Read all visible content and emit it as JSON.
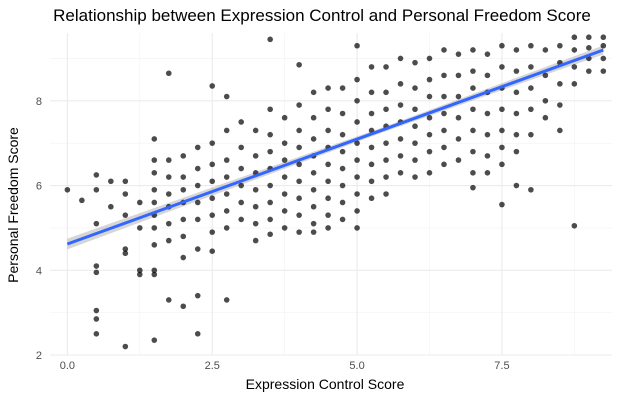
{
  "chart_data": {
    "type": "scatter",
    "title": "Relationship between Expression Control and Personal Freedom Score",
    "xlabel": "Expression Control Score",
    "ylabel": "Personal Freedom Score",
    "xlim": [
      -0.3,
      9.4
    ],
    "ylim": [
      2.0,
      9.6
    ],
    "x_ticks": [
      0.0,
      2.5,
      5.0,
      7.5
    ],
    "x_tick_labels": [
      "0.0",
      "2.5",
      "5.0",
      "7.5"
    ],
    "y_ticks": [
      2,
      4,
      6,
      8
    ],
    "y_tick_labels": [
      "2",
      "4",
      "6",
      "8"
    ],
    "grid": true,
    "legend": "none",
    "point_color": "#000000",
    "point_opacity": 0.7,
    "fit_line": {
      "type": "linear",
      "color": "#3366ff",
      "band_color": "#999999",
      "intercept": 4.62,
      "slope": 0.495
    },
    "points": [
      {
        "x": 0.0,
        "y": 5.9
      },
      {
        "x": 0.25,
        "y": 5.65
      },
      {
        "x": 0.5,
        "y": 6.25
      },
      {
        "x": 0.5,
        "y": 5.9
      },
      {
        "x": 0.5,
        "y": 5.1
      },
      {
        "x": 0.5,
        "y": 4.1
      },
      {
        "x": 0.5,
        "y": 3.95
      },
      {
        "x": 0.5,
        "y": 3.05
      },
      {
        "x": 0.5,
        "y": 2.85
      },
      {
        "x": 0.5,
        "y": 2.5
      },
      {
        "x": 0.75,
        "y": 6.1
      },
      {
        "x": 0.75,
        "y": 5.5
      },
      {
        "x": 1.0,
        "y": 6.1
      },
      {
        "x": 1.0,
        "y": 5.8
      },
      {
        "x": 1.0,
        "y": 5.3
      },
      {
        "x": 1.0,
        "y": 4.5
      },
      {
        "x": 1.0,
        "y": 4.4
      },
      {
        "x": 1.0,
        "y": 2.2
      },
      {
        "x": 1.25,
        "y": 5.6
      },
      {
        "x": 1.25,
        "y": 5.0
      },
      {
        "x": 1.25,
        "y": 4.0
      },
      {
        "x": 1.25,
        "y": 3.9
      },
      {
        "x": 1.5,
        "y": 7.1
      },
      {
        "x": 1.5,
        "y": 6.6
      },
      {
        "x": 1.5,
        "y": 6.3
      },
      {
        "x": 1.5,
        "y": 5.9
      },
      {
        "x": 1.5,
        "y": 5.6
      },
      {
        "x": 1.5,
        "y": 5.3
      },
      {
        "x": 1.5,
        "y": 5.0
      },
      {
        "x": 1.5,
        "y": 4.6
      },
      {
        "x": 1.5,
        "y": 4.0
      },
      {
        "x": 1.5,
        "y": 3.9
      },
      {
        "x": 1.5,
        "y": 2.35
      },
      {
        "x": 1.75,
        "y": 8.65
      },
      {
        "x": 1.75,
        "y": 6.6
      },
      {
        "x": 1.75,
        "y": 6.2
      },
      {
        "x": 1.75,
        "y": 5.8
      },
      {
        "x": 1.75,
        "y": 5.5
      },
      {
        "x": 1.75,
        "y": 5.1
      },
      {
        "x": 1.75,
        "y": 4.7
      },
      {
        "x": 1.75,
        "y": 3.3
      },
      {
        "x": 2.0,
        "y": 6.7
      },
      {
        "x": 2.0,
        "y": 6.2
      },
      {
        "x": 2.0,
        "y": 5.9
      },
      {
        "x": 2.0,
        "y": 5.6
      },
      {
        "x": 2.0,
        "y": 5.2
      },
      {
        "x": 2.0,
        "y": 4.8
      },
      {
        "x": 2.0,
        "y": 4.3
      },
      {
        "x": 2.0,
        "y": 3.15
      },
      {
        "x": 2.25,
        "y": 6.9
      },
      {
        "x": 2.25,
        "y": 6.4
      },
      {
        "x": 2.25,
        "y": 6.0
      },
      {
        "x": 2.25,
        "y": 5.6
      },
      {
        "x": 2.25,
        "y": 5.2
      },
      {
        "x": 2.25,
        "y": 4.5
      },
      {
        "x": 2.25,
        "y": 3.4
      },
      {
        "x": 2.25,
        "y": 2.5
      },
      {
        "x": 2.5,
        "y": 8.35
      },
      {
        "x": 2.5,
        "y": 7.0
      },
      {
        "x": 2.5,
        "y": 6.5
      },
      {
        "x": 2.5,
        "y": 6.1
      },
      {
        "x": 2.5,
        "y": 5.7
      },
      {
        "x": 2.5,
        "y": 5.3
      },
      {
        "x": 2.5,
        "y": 4.9
      },
      {
        "x": 2.5,
        "y": 4.45
      },
      {
        "x": 2.75,
        "y": 8.1
      },
      {
        "x": 2.75,
        "y": 7.3
      },
      {
        "x": 2.75,
        "y": 6.6
      },
      {
        "x": 2.75,
        "y": 6.2
      },
      {
        "x": 2.75,
        "y": 5.8
      },
      {
        "x": 2.75,
        "y": 5.4
      },
      {
        "x": 2.75,
        "y": 5.0
      },
      {
        "x": 2.75,
        "y": 3.3
      },
      {
        "x": 3.0,
        "y": 7.5
      },
      {
        "x": 3.0,
        "y": 6.9
      },
      {
        "x": 3.0,
        "y": 6.4
      },
      {
        "x": 3.0,
        "y": 6.0
      },
      {
        "x": 3.0,
        "y": 5.6
      },
      {
        "x": 3.0,
        "y": 5.2
      },
      {
        "x": 3.25,
        "y": 7.3
      },
      {
        "x": 3.25,
        "y": 6.7
      },
      {
        "x": 3.25,
        "y": 6.3
      },
      {
        "x": 3.25,
        "y": 5.9
      },
      {
        "x": 3.25,
        "y": 5.5
      },
      {
        "x": 3.25,
        "y": 5.1
      },
      {
        "x": 3.25,
        "y": 4.7
      },
      {
        "x": 3.5,
        "y": 9.45
      },
      {
        "x": 3.5,
        "y": 7.8
      },
      {
        "x": 3.5,
        "y": 7.2
      },
      {
        "x": 3.5,
        "y": 6.8
      },
      {
        "x": 3.5,
        "y": 6.4
      },
      {
        "x": 3.5,
        "y": 6.0
      },
      {
        "x": 3.5,
        "y": 5.6
      },
      {
        "x": 3.5,
        "y": 5.2
      },
      {
        "x": 3.5,
        "y": 4.85
      },
      {
        "x": 3.75,
        "y": 7.6
      },
      {
        "x": 3.75,
        "y": 7.0
      },
      {
        "x": 3.75,
        "y": 6.6
      },
      {
        "x": 3.75,
        "y": 6.2
      },
      {
        "x": 3.75,
        "y": 5.8
      },
      {
        "x": 3.75,
        "y": 5.4
      },
      {
        "x": 3.75,
        "y": 5.0
      },
      {
        "x": 4.0,
        "y": 8.85
      },
      {
        "x": 4.0,
        "y": 7.9
      },
      {
        "x": 4.0,
        "y": 7.3
      },
      {
        "x": 4.0,
        "y": 6.9
      },
      {
        "x": 4.0,
        "y": 6.5
      },
      {
        "x": 4.0,
        "y": 6.1
      },
      {
        "x": 4.0,
        "y": 5.7
      },
      {
        "x": 4.0,
        "y": 5.3
      },
      {
        "x": 4.0,
        "y": 4.9
      },
      {
        "x": 4.25,
        "y": 8.2
      },
      {
        "x": 4.25,
        "y": 7.6
      },
      {
        "x": 4.25,
        "y": 7.1
      },
      {
        "x": 4.25,
        "y": 6.7
      },
      {
        "x": 4.25,
        "y": 6.3
      },
      {
        "x": 4.25,
        "y": 5.9
      },
      {
        "x": 4.25,
        "y": 5.5
      },
      {
        "x": 4.25,
        "y": 5.1
      },
      {
        "x": 4.25,
        "y": 4.9
      },
      {
        "x": 4.5,
        "y": 8.3
      },
      {
        "x": 4.5,
        "y": 7.8
      },
      {
        "x": 4.5,
        "y": 7.3
      },
      {
        "x": 4.5,
        "y": 6.9
      },
      {
        "x": 4.5,
        "y": 6.5
      },
      {
        "x": 4.5,
        "y": 6.1
      },
      {
        "x": 4.5,
        "y": 5.7
      },
      {
        "x": 4.5,
        "y": 5.3
      },
      {
        "x": 4.5,
        "y": 5.0
      },
      {
        "x": 4.75,
        "y": 8.3
      },
      {
        "x": 4.75,
        "y": 7.7
      },
      {
        "x": 4.75,
        "y": 7.2
      },
      {
        "x": 4.75,
        "y": 6.8
      },
      {
        "x": 4.75,
        "y": 6.4
      },
      {
        "x": 4.75,
        "y": 6.0
      },
      {
        "x": 4.75,
        "y": 5.6
      },
      {
        "x": 4.75,
        "y": 5.2
      },
      {
        "x": 5.0,
        "y": 9.3
      },
      {
        "x": 5.0,
        "y": 8.5
      },
      {
        "x": 5.0,
        "y": 8.0
      },
      {
        "x": 5.0,
        "y": 7.5
      },
      {
        "x": 5.0,
        "y": 7.0
      },
      {
        "x": 5.0,
        "y": 6.6
      },
      {
        "x": 5.0,
        "y": 6.2
      },
      {
        "x": 5.0,
        "y": 5.8
      },
      {
        "x": 5.0,
        "y": 5.4
      },
      {
        "x": 5.0,
        "y": 5.0
      },
      {
        "x": 5.25,
        "y": 8.8
      },
      {
        "x": 5.25,
        "y": 8.2
      },
      {
        "x": 5.25,
        "y": 7.7
      },
      {
        "x": 5.25,
        "y": 7.3
      },
      {
        "x": 5.25,
        "y": 6.9
      },
      {
        "x": 5.25,
        "y": 6.5
      },
      {
        "x": 5.25,
        "y": 6.1
      },
      {
        "x": 5.25,
        "y": 5.7
      },
      {
        "x": 5.5,
        "y": 8.8
      },
      {
        "x": 5.5,
        "y": 8.2
      },
      {
        "x": 5.5,
        "y": 7.8
      },
      {
        "x": 5.5,
        "y": 7.4
      },
      {
        "x": 5.5,
        "y": 7.0
      },
      {
        "x": 5.5,
        "y": 6.6
      },
      {
        "x": 5.5,
        "y": 6.2
      },
      {
        "x": 5.5,
        "y": 5.8
      },
      {
        "x": 5.75,
        "y": 9.0
      },
      {
        "x": 5.75,
        "y": 8.4
      },
      {
        "x": 5.75,
        "y": 7.9
      },
      {
        "x": 5.75,
        "y": 7.5
      },
      {
        "x": 5.75,
        "y": 7.1
      },
      {
        "x": 5.75,
        "y": 6.7
      },
      {
        "x": 5.75,
        "y": 6.3
      },
      {
        "x": 6.0,
        "y": 8.9
      },
      {
        "x": 6.0,
        "y": 8.3
      },
      {
        "x": 6.0,
        "y": 7.8
      },
      {
        "x": 6.0,
        "y": 7.4
      },
      {
        "x": 6.0,
        "y": 7.0
      },
      {
        "x": 6.0,
        "y": 6.6
      },
      {
        "x": 6.0,
        "y": 6.2
      },
      {
        "x": 6.25,
        "y": 9.0
      },
      {
        "x": 6.25,
        "y": 8.5
      },
      {
        "x": 6.25,
        "y": 8.1
      },
      {
        "x": 6.25,
        "y": 7.6
      },
      {
        "x": 6.25,
        "y": 7.2
      },
      {
        "x": 6.25,
        "y": 6.8
      },
      {
        "x": 6.25,
        "y": 6.3
      },
      {
        "x": 6.5,
        "y": 9.2
      },
      {
        "x": 6.5,
        "y": 8.6
      },
      {
        "x": 6.5,
        "y": 8.1
      },
      {
        "x": 6.5,
        "y": 7.7
      },
      {
        "x": 6.5,
        "y": 7.3
      },
      {
        "x": 6.5,
        "y": 6.9
      },
      {
        "x": 6.5,
        "y": 6.5
      },
      {
        "x": 6.75,
        "y": 9.1
      },
      {
        "x": 6.75,
        "y": 8.6
      },
      {
        "x": 6.75,
        "y": 8.1
      },
      {
        "x": 6.75,
        "y": 7.6
      },
      {
        "x": 6.75,
        "y": 7.1
      },
      {
        "x": 6.75,
        "y": 6.6
      },
      {
        "x": 7.0,
        "y": 9.2
      },
      {
        "x": 7.0,
        "y": 8.7
      },
      {
        "x": 7.0,
        "y": 8.3
      },
      {
        "x": 7.0,
        "y": 7.8
      },
      {
        "x": 7.0,
        "y": 7.3
      },
      {
        "x": 7.0,
        "y": 6.8
      },
      {
        "x": 7.0,
        "y": 6.3
      },
      {
        "x": 7.0,
        "y": 5.95
      },
      {
        "x": 7.25,
        "y": 9.1
      },
      {
        "x": 7.25,
        "y": 8.6
      },
      {
        "x": 7.25,
        "y": 8.2
      },
      {
        "x": 7.25,
        "y": 7.7
      },
      {
        "x": 7.25,
        "y": 7.2
      },
      {
        "x": 7.25,
        "y": 6.7
      },
      {
        "x": 7.25,
        "y": 6.3
      },
      {
        "x": 7.5,
        "y": 9.3
      },
      {
        "x": 7.5,
        "y": 8.8
      },
      {
        "x": 7.5,
        "y": 8.3
      },
      {
        "x": 7.5,
        "y": 7.8
      },
      {
        "x": 7.5,
        "y": 7.3
      },
      {
        "x": 7.5,
        "y": 6.9
      },
      {
        "x": 7.5,
        "y": 6.5
      },
      {
        "x": 7.5,
        "y": 5.55
      },
      {
        "x": 7.75,
        "y": 9.2
      },
      {
        "x": 7.75,
        "y": 8.7
      },
      {
        "x": 7.75,
        "y": 8.2
      },
      {
        "x": 7.75,
        "y": 7.7
      },
      {
        "x": 7.75,
        "y": 7.2
      },
      {
        "x": 7.75,
        "y": 6.8
      },
      {
        "x": 7.75,
        "y": 6.0
      },
      {
        "x": 8.0,
        "y": 9.3
      },
      {
        "x": 8.0,
        "y": 8.8
      },
      {
        "x": 8.0,
        "y": 8.3
      },
      {
        "x": 8.0,
        "y": 7.8
      },
      {
        "x": 8.0,
        "y": 7.2
      },
      {
        "x": 8.0,
        "y": 5.9
      },
      {
        "x": 8.25,
        "y": 9.2
      },
      {
        "x": 8.25,
        "y": 8.6
      },
      {
        "x": 8.25,
        "y": 8.0
      },
      {
        "x": 8.25,
        "y": 7.6
      },
      {
        "x": 8.5,
        "y": 9.3
      },
      {
        "x": 8.5,
        "y": 8.9
      },
      {
        "x": 8.5,
        "y": 8.4
      },
      {
        "x": 8.5,
        "y": 7.9
      },
      {
        "x": 8.5,
        "y": 7.3
      },
      {
        "x": 8.75,
        "y": 9.5
      },
      {
        "x": 8.75,
        "y": 9.2
      },
      {
        "x": 8.75,
        "y": 8.8
      },
      {
        "x": 8.75,
        "y": 8.4
      },
      {
        "x": 8.75,
        "y": 5.05
      },
      {
        "x": 9.0,
        "y": 9.5
      },
      {
        "x": 9.0,
        "y": 9.25
      },
      {
        "x": 9.0,
        "y": 9.0
      },
      {
        "x": 9.0,
        "y": 8.7
      },
      {
        "x": 9.25,
        "y": 9.5
      },
      {
        "x": 9.25,
        "y": 9.3
      },
      {
        "x": 9.25,
        "y": 9.0
      },
      {
        "x": 9.25,
        "y": 8.7
      }
    ]
  }
}
